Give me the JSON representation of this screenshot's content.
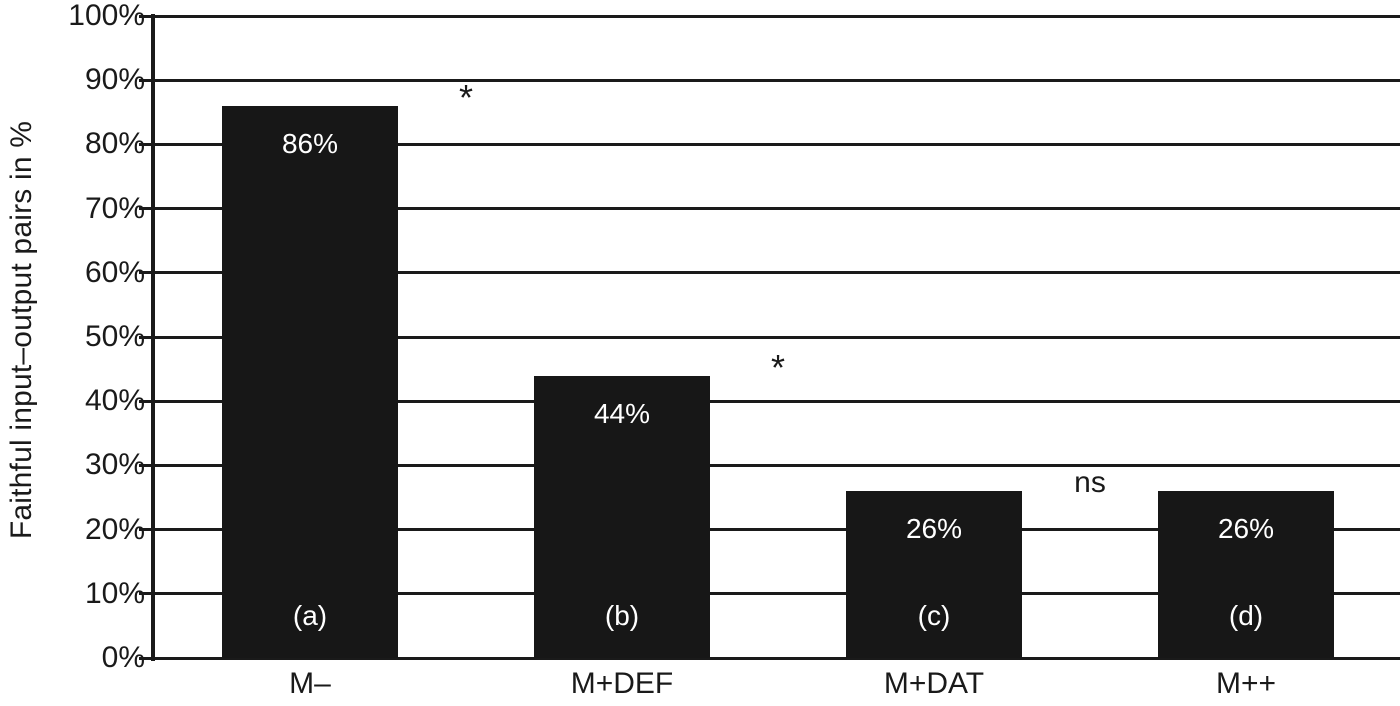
{
  "chart_data": {
    "type": "bar",
    "title": "",
    "xlabel": "",
    "ylabel": "Faithful input–output pairs in %",
    "categories": [
      "M–",
      "M+DEF",
      "M+DAT",
      "M++"
    ],
    "values": [
      86,
      44,
      26,
      26
    ],
    "value_labels": [
      "86%",
      "44%",
      "26%",
      "26%"
    ],
    "bar_letter_labels": [
      "(a)",
      "(b)",
      "(c)",
      "(d)"
    ],
    "ytick_labels": [
      "0%",
      "10%",
      "20%",
      "30%",
      "40%",
      "50%",
      "60%",
      "70%",
      "80%",
      "90%",
      "100%"
    ],
    "ylim": [
      0,
      100
    ],
    "ytick_step": 10,
    "grid": "horizontal",
    "legend": "none",
    "significance_annotations": [
      {
        "text": "*",
        "between": [
          0,
          1
        ]
      },
      {
        "text": "*",
        "between": [
          1,
          2
        ]
      },
      {
        "text": "ns",
        "between": [
          2,
          3
        ]
      }
    ],
    "colors": {
      "bar": "#171717",
      "axis": "#1a1a1a",
      "bar_value_text": "#ffffff",
      "background": "#ffffff"
    }
  }
}
